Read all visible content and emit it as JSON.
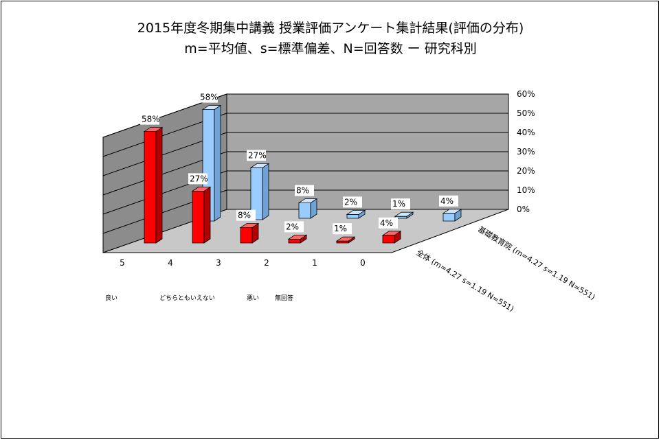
{
  "chart_data": {
    "type": "bar",
    "title": "2015年度冬期集中講義  授業評価アンケート集計結果(評価の分布)",
    "subtitle": "m=平均値、s=標準偏差、N=回答数  ー  研究科別",
    "categories": [
      "5",
      "4",
      "3",
      "2",
      "1",
      "0"
    ],
    "category_notes": [
      "良い",
      "どちらともいえない",
      "悪い",
      "無回答"
    ],
    "series": [
      {
        "name": "全体 (m=4.27 s=1.19 N=551)",
        "values": [
          58,
          27,
          8,
          2,
          1,
          4
        ],
        "labels": [
          "58%",
          "27%",
          "8%",
          "2%",
          "1%",
          "4%"
        ],
        "color": "#ff0000"
      },
      {
        "name": "基礎教育院 (m=4.27 s=1.19 N=551)",
        "values": [
          58,
          27,
          8,
          2,
          1,
          4
        ],
        "labels": [
          "58%",
          "27%",
          "8%",
          "2%",
          "1%",
          "4%"
        ],
        "color": "#99ccff"
      }
    ],
    "yticks": [
      "0%",
      "10%",
      "20%",
      "30%",
      "40%",
      "50%",
      "60%"
    ],
    "ylim": [
      0,
      60
    ],
    "grid": true,
    "style": "3d-column"
  }
}
